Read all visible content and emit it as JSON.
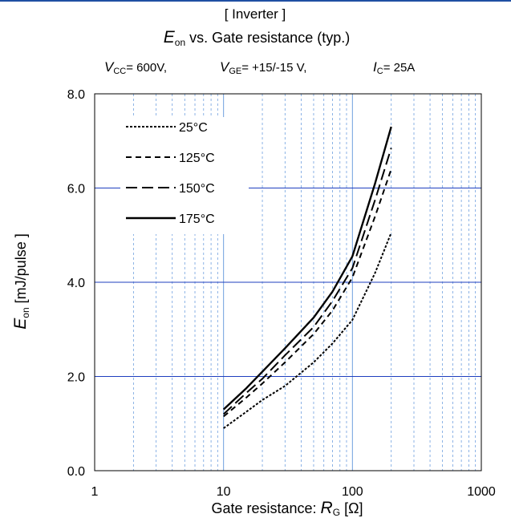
{
  "chart_data": {
    "type": "line",
    "title_top": "[ Inverter ]",
    "title": {
      "symbol": "E",
      "subscript": "on",
      "rest": " vs.  Gate resistance  (typ.)"
    },
    "conditions": [
      {
        "symbol": "V",
        "subscript": "CC",
        "value": "= 600V,"
      },
      {
        "symbol": "V",
        "subscript": "GE",
        "value": "=  +15/-15 V,"
      },
      {
        "symbol": "I",
        "subscript": "C",
        "value": "= 25A"
      }
    ],
    "xlabel": {
      "prefix": "Gate resistance: ",
      "symbol": "R",
      "subscript": "G",
      "unit": " [Ω]"
    },
    "ylabel": {
      "symbol": "E",
      "subscript": "on",
      "unit": " [mJ/pulse ]"
    },
    "x_scale": "log",
    "xlim": [
      1,
      1000
    ],
    "ylim": [
      0,
      8
    ],
    "x_ticks": [
      "1",
      "10",
      "100",
      "1000"
    ],
    "y_ticks": [
      "0.0",
      "2.0",
      "4.0",
      "6.0",
      "8.0"
    ],
    "grid": true,
    "legend_position": "top-left",
    "series": [
      {
        "name": "25°C",
        "dash": "dotted",
        "x": [
          10,
          15,
          20,
          30,
          50,
          70,
          100,
          150,
          200
        ],
        "y": [
          0.9,
          1.25,
          1.5,
          1.8,
          2.3,
          2.7,
          3.2,
          4.2,
          5.05
        ]
      },
      {
        "name": "125°C",
        "dash": "short-dash",
        "x": [
          10,
          15,
          20,
          30,
          50,
          70,
          100,
          150,
          200
        ],
        "y": [
          1.15,
          1.55,
          1.85,
          2.3,
          2.9,
          3.4,
          4.1,
          5.4,
          6.4
        ]
      },
      {
        "name": "150°C",
        "dash": "long-dash",
        "x": [
          10,
          15,
          20,
          30,
          50,
          70,
          100,
          150,
          200
        ],
        "y": [
          1.2,
          1.65,
          1.95,
          2.45,
          3.05,
          3.6,
          4.3,
          5.75,
          6.85
        ]
      },
      {
        "name": "175°C",
        "dash": "solid",
        "x": [
          10,
          15,
          20,
          30,
          50,
          70,
          100,
          150,
          200
        ],
        "y": [
          1.3,
          1.75,
          2.1,
          2.6,
          3.25,
          3.8,
          4.55,
          6.1,
          7.3
        ]
      }
    ],
    "colors": {
      "grid_major": "#1f3fbf",
      "grid_minor": "#6f9fdf",
      "line": "#000000"
    }
  }
}
